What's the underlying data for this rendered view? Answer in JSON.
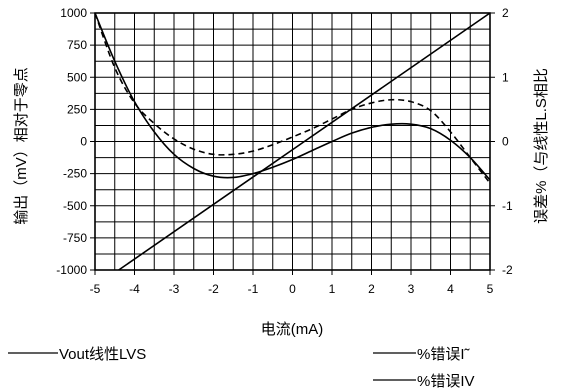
{
  "chart_data": {
    "type": "line",
    "title": "",
    "xlabel": "电流(mA)",
    "ylabel_left": "输出（mV）相对于零点",
    "ylabel_right": "误差%（与线性L.S相比",
    "xlim": [
      -5,
      5
    ],
    "ylim_left": [
      -1000,
      1000
    ],
    "ylim_right": [
      -2,
      2
    ],
    "x_ticks": [
      -5,
      -4,
      -3,
      -2,
      -1,
      0,
      1,
      2,
      3,
      4,
      5
    ],
    "y_ticks_left": [
      1000,
      750,
      500,
      250,
      0,
      -250,
      -500,
      -750,
      -1000
    ],
    "y_ticks_right": [
      2,
      1,
      0,
      -1,
      -2
    ],
    "grid": true,
    "x_minor_step": 0.5,
    "y_minor_step": 125,
    "series": [
      {
        "name": "Vout线性LVS",
        "axis": "left",
        "style": "solid",
        "x": [
          -4.4,
          5
        ],
        "y": [
          -1000,
          1000
        ]
      },
      {
        "name": "%错误I˜",
        "axis": "right",
        "style": "dashed",
        "x": [
          -5,
          -4.5,
          -4,
          -3.5,
          -3,
          -2.5,
          -2,
          -1.5,
          -1,
          -0.5,
          0,
          0.5,
          1,
          1.5,
          2,
          2.5,
          3,
          3.5,
          4,
          4.5,
          5
        ],
        "y": [
          2.0,
          1.15,
          0.6,
          0.28,
          0.04,
          -0.12,
          -0.2,
          -0.2,
          -0.15,
          -0.05,
          0.07,
          0.2,
          0.35,
          0.5,
          0.6,
          0.65,
          0.62,
          0.48,
          0.15,
          -0.25,
          -0.65
        ]
      },
      {
        "name": "%错误IV",
        "axis": "right",
        "style": "solid",
        "x": [
          -5,
          -4.5,
          -4,
          -3.5,
          -3,
          -2.5,
          -2,
          -1.5,
          -1,
          -0.5,
          0,
          0.5,
          1,
          1.5,
          2,
          2.5,
          3,
          3.5,
          4,
          4.5,
          5
        ],
        "y": [
          2.0,
          1.25,
          0.62,
          0.15,
          -0.2,
          -0.42,
          -0.54,
          -0.56,
          -0.5,
          -0.4,
          -0.28,
          -0.14,
          0.0,
          0.13,
          0.22,
          0.27,
          0.27,
          0.2,
          0.02,
          -0.25,
          -0.6
        ]
      }
    ],
    "legend_placement": "bottom"
  }
}
